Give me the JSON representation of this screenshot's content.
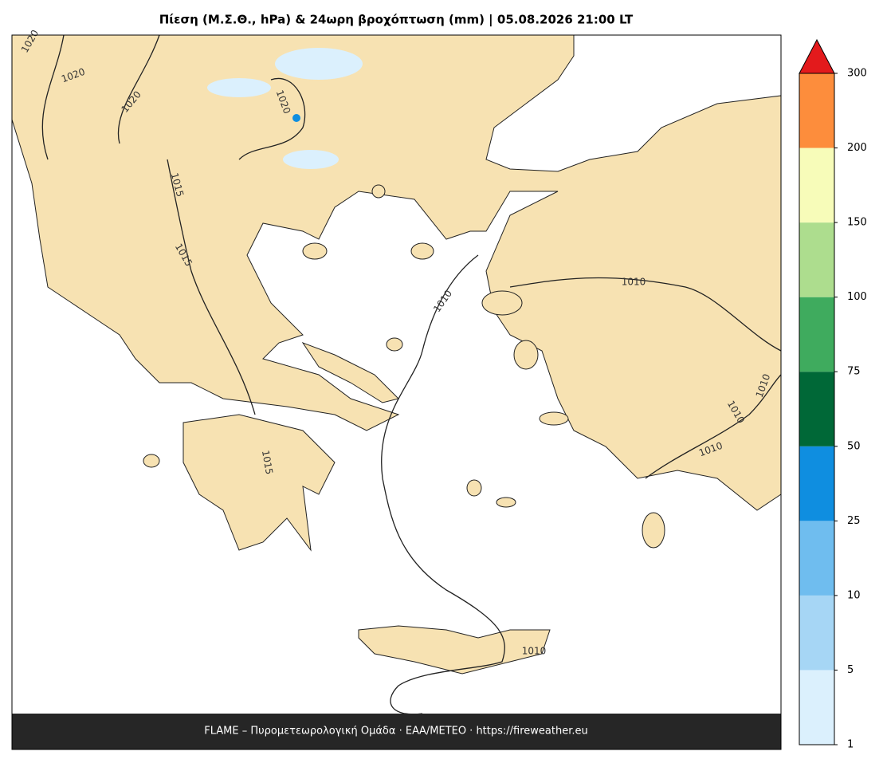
{
  "title": "Πίεση (Μ.Σ.Θ., hPa) & 24ωρη βροχόπτωση (mm)  |  05.08.2026 21:00 LT",
  "footer": "FLAME – Πυρομετεωρολογική Ομάδα · ΕΑΑ/METEO · https://fireweather.eu",
  "colorbar": {
    "ticks": [
      1,
      5,
      10,
      25,
      50,
      75,
      100,
      150,
      200,
      300
    ],
    "colors": [
      "#dbf0fd",
      "#a6d6f5",
      "#6fbdef",
      "#0f8ee0",
      "#006837",
      "#3fab5e",
      "#addd8e",
      "#f7fcb9",
      "#fd8d3c"
    ],
    "extend_color": "#e31a1c"
  },
  "contour_labels": [
    "1020",
    "1020",
    "1020",
    "1020",
    "1015",
    "1015",
    "1015",
    "1010",
    "1010",
    "1010",
    "1010",
    "1010",
    "1010"
  ]
}
